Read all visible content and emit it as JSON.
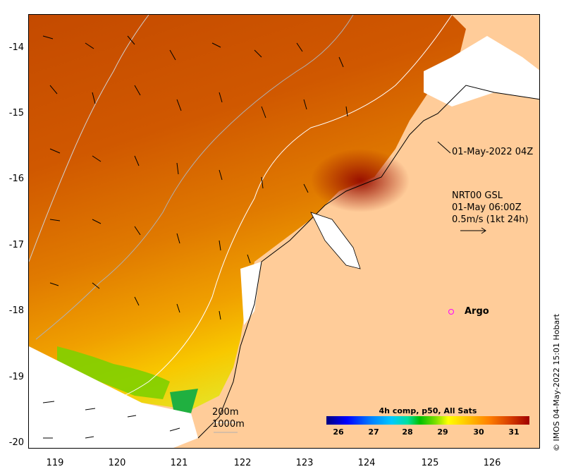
{
  "map": {
    "y_ticks": [
      "-14",
      "-15",
      "-16",
      "-17",
      "-18",
      "-19",
      "-20"
    ],
    "x_ticks": [
      "119",
      "120",
      "121",
      "122",
      "123",
      "124",
      "125",
      "126"
    ],
    "timestamp_label": "01-May-2022 04Z",
    "current_product": "NRT00 GSL",
    "current_time": "01-May 06:00Z",
    "scale_label": "0.5m/s (1kt 24h)",
    "argo_label": "Argo",
    "isobath_200": "200m",
    "isobath_1000": "1000m",
    "credit": "© IMOS 04-May-2022 15:01 Hobart"
  },
  "colorbar": {
    "title": "4h comp, p50, All Sats",
    "ticks": [
      "26",
      "27",
      "28",
      "29",
      "30",
      "31"
    ],
    "range": [
      25.5,
      31.5
    ]
  },
  "colors": {
    "land": "#ffcc99",
    "no_data": "#ffffff",
    "argo": "#ff00ff"
  }
}
